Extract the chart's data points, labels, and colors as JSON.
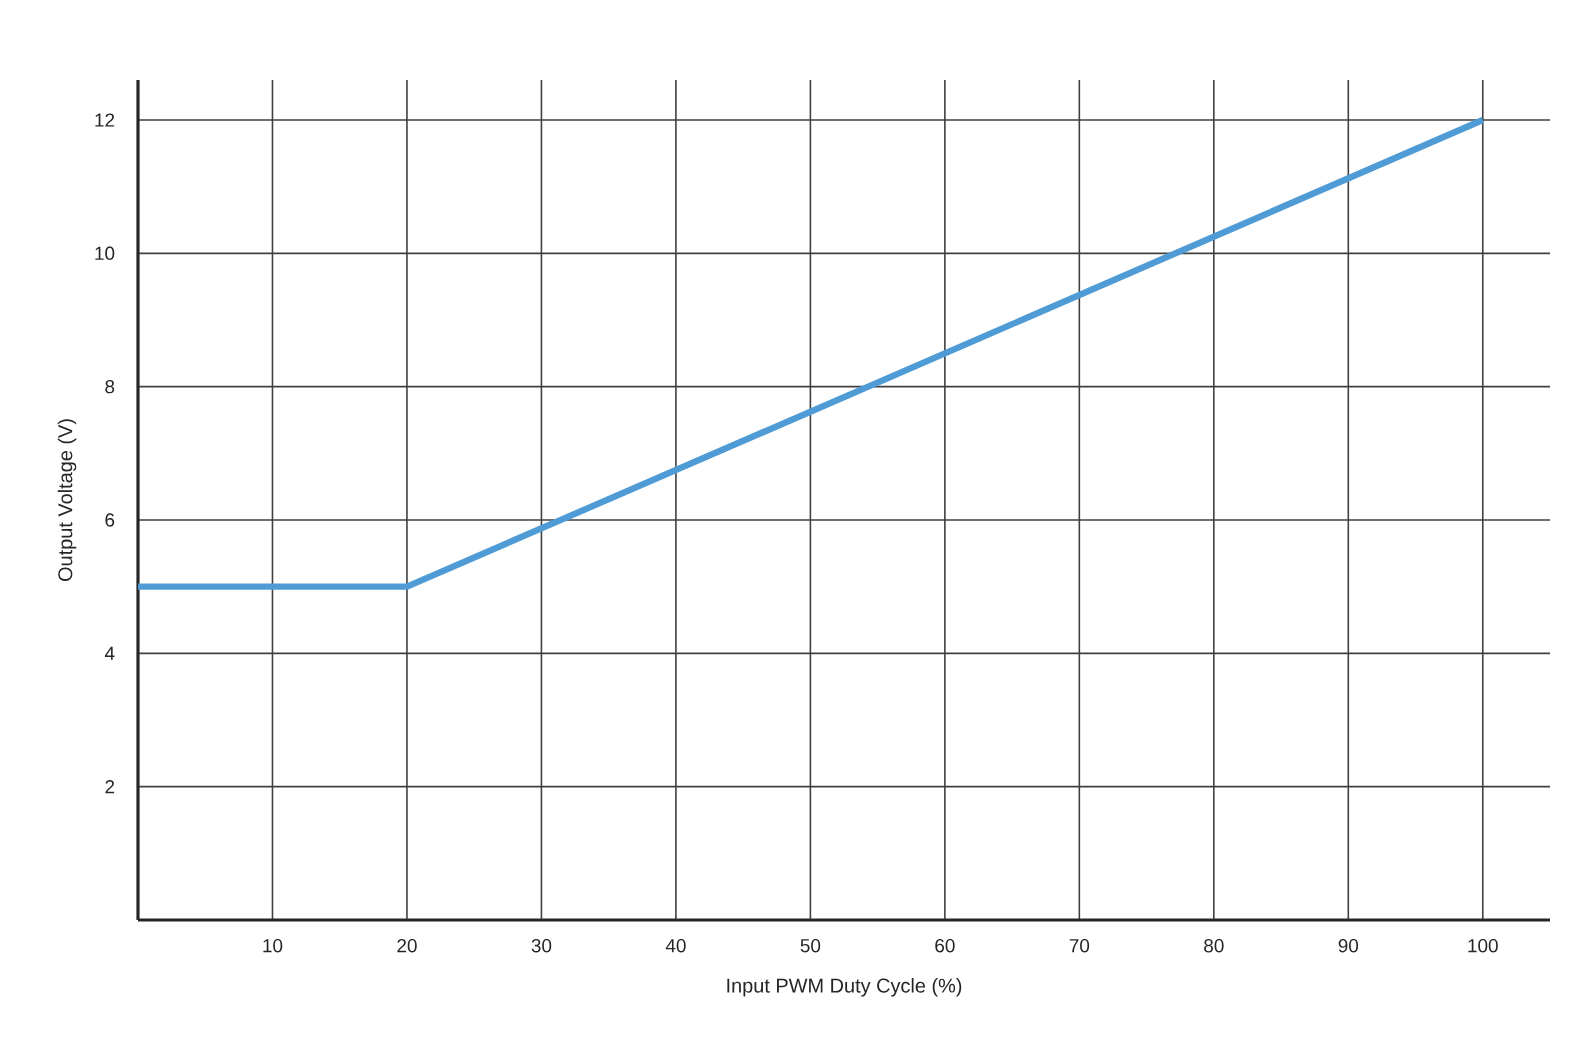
{
  "chart_data": {
    "type": "line",
    "xlabel": "Input PWM Duty Cycle (%)",
    "ylabel": "Output Voltage (V)",
    "x": [
      0,
      20,
      100
    ],
    "series": [
      {
        "color": "#4f9bd5",
        "values": [
          5,
          5,
          12
        ]
      }
    ],
    "xlim": [
      0,
      105
    ],
    "ylim": [
      0,
      12.6
    ],
    "xticks": [
      10,
      20,
      30,
      40,
      50,
      60,
      70,
      80,
      90,
      100
    ],
    "yticks": [
      2,
      4,
      6,
      8,
      10,
      12
    ],
    "grid": true,
    "legend": false,
    "marker": "none",
    "line_style": "solid"
  }
}
